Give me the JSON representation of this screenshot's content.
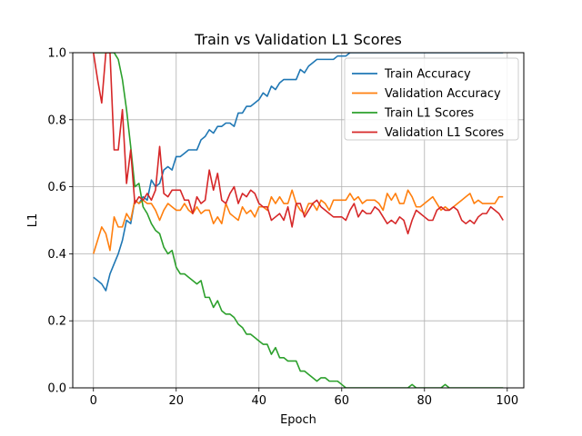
{
  "chart_data": {
    "type": "line",
    "title": "Train vs Validation L1 Scores",
    "xlabel": "Epoch",
    "ylabel": "L1",
    "xlim": [
      -5,
      104
    ],
    "ylim": [
      0,
      1
    ],
    "x_ticks": [
      0,
      20,
      40,
      60,
      80,
      100
    ],
    "y_ticks": [
      0.0,
      0.2,
      0.4,
      0.6,
      0.8,
      1.0
    ],
    "x_tick_labels": [
      "0",
      "20",
      "40",
      "60",
      "80",
      "100"
    ],
    "y_tick_labels": [
      "0.0",
      "0.2",
      "0.4",
      "0.6",
      "0.8",
      "1.0"
    ],
    "grid": true,
    "legend_position": "top-right",
    "series": [
      {
        "name": "Train Accuracy",
        "color": "#1f77b4",
        "values": [
          0.33,
          0.32,
          0.31,
          0.29,
          0.34,
          0.37,
          0.4,
          0.44,
          0.5,
          0.49,
          0.56,
          0.55,
          0.57,
          0.56,
          0.62,
          0.6,
          0.61,
          0.65,
          0.66,
          0.65,
          0.69,
          0.69,
          0.7,
          0.71,
          0.71,
          0.71,
          0.74,
          0.75,
          0.77,
          0.76,
          0.78,
          0.78,
          0.79,
          0.79,
          0.78,
          0.82,
          0.82,
          0.84,
          0.84,
          0.85,
          0.86,
          0.88,
          0.87,
          0.9,
          0.89,
          0.91,
          0.92,
          0.92,
          0.92,
          0.92,
          0.95,
          0.94,
          0.96,
          0.97,
          0.98,
          0.98,
          0.98,
          0.98,
          0.98,
          0.99,
          0.99,
          0.99,
          1.0,
          1.0,
          1.0,
          1.0,
          1.0,
          1.0,
          1.0,
          1.0,
          1.0,
          1.0,
          1.0,
          1.0,
          1.0,
          1.0,
          1.0,
          1.0,
          1.0,
          1.0,
          1.0,
          1.0,
          1.0,
          1.0,
          1.0,
          1.0,
          1.0,
          1.0,
          1.0,
          1.0,
          1.0,
          1.0,
          1.0,
          1.0,
          1.0,
          1.0,
          1.0,
          1.0,
          1.0,
          1.0
        ]
      },
      {
        "name": "Validation Accuracy",
        "color": "#ff7f0e",
        "values": [
          0.4,
          0.44,
          0.48,
          0.46,
          0.41,
          0.51,
          0.48,
          0.48,
          0.52,
          0.5,
          0.56,
          0.55,
          0.56,
          0.55,
          0.55,
          0.53,
          0.5,
          0.53,
          0.55,
          0.54,
          0.53,
          0.53,
          0.55,
          0.53,
          0.52,
          0.54,
          0.52,
          0.53,
          0.53,
          0.49,
          0.51,
          0.49,
          0.55,
          0.52,
          0.51,
          0.5,
          0.54,
          0.52,
          0.53,
          0.51,
          0.54,
          0.54,
          0.53,
          0.57,
          0.55,
          0.57,
          0.55,
          0.55,
          0.59,
          0.55,
          0.53,
          0.52,
          0.55,
          0.55,
          0.53,
          0.56,
          0.55,
          0.53,
          0.56,
          0.56,
          0.56,
          0.56,
          0.58,
          0.56,
          0.57,
          0.55,
          0.56,
          0.56,
          0.56,
          0.55,
          0.53,
          0.58,
          0.56,
          0.58,
          0.55,
          0.55,
          0.59,
          0.57,
          0.54,
          0.54,
          0.55,
          0.56,
          0.57,
          0.55,
          0.53,
          0.54,
          0.53,
          0.54,
          0.55,
          0.56,
          0.57,
          0.58,
          0.55,
          0.56,
          0.55,
          0.55,
          0.55,
          0.55,
          0.57,
          0.57
        ]
      },
      {
        "name": "Train L1 Scores",
        "color": "#2ca02c",
        "values": [
          1.0,
          1.0,
          1.0,
          1.0,
          1.0,
          1.0,
          0.98,
          0.92,
          0.83,
          0.72,
          0.6,
          0.61,
          0.54,
          0.52,
          0.49,
          0.47,
          0.46,
          0.42,
          0.4,
          0.41,
          0.36,
          0.34,
          0.34,
          0.33,
          0.32,
          0.31,
          0.32,
          0.27,
          0.27,
          0.24,
          0.26,
          0.23,
          0.22,
          0.22,
          0.21,
          0.19,
          0.18,
          0.16,
          0.16,
          0.15,
          0.14,
          0.13,
          0.13,
          0.1,
          0.12,
          0.09,
          0.09,
          0.08,
          0.08,
          0.08,
          0.05,
          0.05,
          0.04,
          0.03,
          0.02,
          0.03,
          0.03,
          0.02,
          0.02,
          0.02,
          0.01,
          0.0,
          0.0,
          0.0,
          0.0,
          0.0,
          0.0,
          0.0,
          0.0,
          0.0,
          0.0,
          0.0,
          0.0,
          0.0,
          0.0,
          0.0,
          0.0,
          0.01,
          0.0,
          0.0,
          0.0,
          0.0,
          0.0,
          0.0,
          0.0,
          0.01,
          0.0,
          0.0,
          0.0,
          0.0,
          0.0,
          0.0,
          0.0,
          0.0,
          0.0,
          0.0,
          0.0,
          0.0,
          0.0,
          0.0
        ]
      },
      {
        "name": "Validation L1 Scores",
        "color": "#d62728",
        "values": [
          1.0,
          0.92,
          0.85,
          1.0,
          1.0,
          0.71,
          0.71,
          0.83,
          0.61,
          0.71,
          0.55,
          0.57,
          0.56,
          0.58,
          0.56,
          0.59,
          0.72,
          0.58,
          0.57,
          0.59,
          0.59,
          0.59,
          0.56,
          0.56,
          0.52,
          0.57,
          0.55,
          0.56,
          0.65,
          0.59,
          0.64,
          0.56,
          0.55,
          0.58,
          0.6,
          0.55,
          0.58,
          0.57,
          0.59,
          0.58,
          0.55,
          0.54,
          0.54,
          0.5,
          0.51,
          0.52,
          0.5,
          0.54,
          0.48,
          0.55,
          0.55,
          0.51,
          0.53,
          0.55,
          0.56,
          0.54,
          0.53,
          0.52,
          0.51,
          0.51,
          0.51,
          0.5,
          0.53,
          0.55,
          0.51,
          0.53,
          0.52,
          0.52,
          0.54,
          0.53,
          0.51,
          0.49,
          0.5,
          0.49,
          0.51,
          0.5,
          0.46,
          0.5,
          0.53,
          0.52,
          0.51,
          0.5,
          0.5,
          0.53,
          0.54,
          0.53,
          0.53,
          0.54,
          0.53,
          0.5,
          0.49,
          0.5,
          0.49,
          0.51,
          0.52,
          0.52,
          0.54,
          0.53,
          0.52,
          0.5
        ]
      }
    ]
  }
}
